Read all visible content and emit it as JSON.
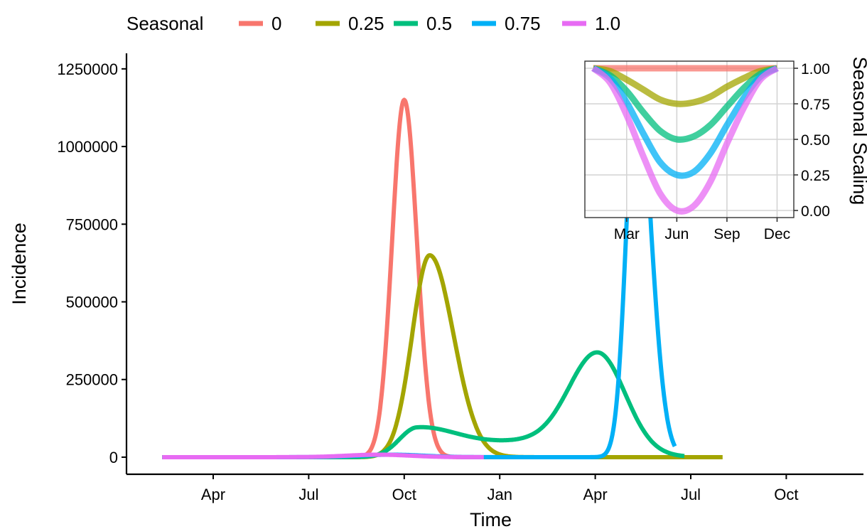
{
  "chart_data": [
    {
      "type": "line",
      "xlabel": "Time",
      "ylabel": "Incidence",
      "x_tick_labels": [
        "Apr",
        "Jul",
        "Oct",
        "Jan",
        "Apr",
        "Jul",
        "Oct"
      ],
      "y_tick_labels": [
        "0",
        "250000",
        "500000",
        "750000",
        "1000000",
        "1250000"
      ],
      "y_ticks": [
        0,
        250000,
        500000,
        750000,
        1000000,
        1250000
      ],
      "x_range_months": [
        0,
        16
      ],
      "ylim": [
        -55000,
        1300000
      ],
      "grid": false,
      "legend": {
        "title": "Seasonal",
        "placement": "top",
        "entries": [
          "0",
          "0.25",
          "0.5",
          "0.75",
          "1.0"
        ]
      },
      "series": [
        {
          "name": "0",
          "color": "#F8766D",
          "end": 10.0,
          "peaks": [
            {
              "center": 6.0,
              "amplitude": 1150000,
              "sigma_left": 0.38,
              "sigma_right": 0.4
            }
          ]
        },
        {
          "name": "0.25",
          "color": "#A3A500",
          "end": 16.0,
          "peaks": [
            {
              "center": 6.8,
              "amplitude": 650000,
              "sigma_left": 0.55,
              "sigma_right": 0.75
            }
          ]
        },
        {
          "name": "0.5",
          "color": "#00BF7D",
          "end": 14.8,
          "peaks": [
            {
              "center": 6.4,
              "amplitude": 90000,
              "sigma_left": 0.55,
              "sigma_right": 1.3
            },
            {
              "center": 10.1,
              "amplitude": 50000,
              "sigma_left": 1.8,
              "sigma_right": 1.8
            },
            {
              "center": 12.1,
              "amplitude": 310000,
              "sigma_left": 0.9,
              "sigma_right": 0.85
            }
          ]
        },
        {
          "name": "0.75",
          "color": "#00B0F6",
          "end": 14.5,
          "peaks": [
            {
              "center": 5.6,
              "amplitude": 8000,
              "sigma_left": 1.0,
              "sigma_right": 1.0
            },
            {
              "center": 13.3,
              "amplitude": 1225000,
              "sigma_left": 0.32,
              "sigma_right": 0.45
            }
          ]
        },
        {
          "name": "1.0",
          "color": "#E76BF3",
          "end": 8.5,
          "peaks": [
            {
              "center": 5.2,
              "amplitude": 8000,
              "sigma_left": 1.0,
              "sigma_right": 1.0
            }
          ]
        }
      ]
    },
    {
      "type": "line",
      "title": "",
      "ylabel": "Seasonal Scaling",
      "x_tick_labels": [
        "Mar",
        "Jun",
        "Sep",
        "Dec"
      ],
      "x_ticks": [
        3,
        6,
        9,
        12
      ],
      "y_tick_labels": [
        "0.00",
        "0.25",
        "0.50",
        "0.75",
        "1.00"
      ],
      "y_ticks": [
        0,
        0.25,
        0.5,
        0.75,
        1.0
      ],
      "xlim": [
        0.5,
        13.0
      ],
      "ylim": [
        -0.05,
        1.05
      ],
      "grid": true,
      "x": [
        1,
        2,
        3,
        4,
        5,
        6,
        7,
        8,
        9,
        10,
        11,
        12
      ],
      "series": [
        {
          "name": "0",
          "color": "#F8766D",
          "values": [
            1.0,
            1.0,
            1.0,
            1.0,
            1.0,
            1.0,
            1.0,
            1.0,
            1.0,
            1.0,
            1.0,
            1.0
          ]
        },
        {
          "name": "0.25",
          "color": "#A3A500",
          "values": [
            1.0,
            0.98,
            0.92,
            0.85,
            0.78,
            0.75,
            0.76,
            0.8,
            0.87,
            0.93,
            0.98,
            1.0
          ]
        },
        {
          "name": "0.5",
          "color": "#00BF7D",
          "values": [
            1.0,
            0.95,
            0.84,
            0.69,
            0.56,
            0.5,
            0.52,
            0.6,
            0.73,
            0.86,
            0.96,
            1.0
          ]
        },
        {
          "name": "0.75",
          "color": "#00B0F6",
          "values": [
            1.0,
            0.93,
            0.76,
            0.54,
            0.34,
            0.25,
            0.27,
            0.4,
            0.6,
            0.79,
            0.94,
            1.0
          ]
        },
        {
          "name": "1.0",
          "color": "#E76BF3",
          "values": [
            1.0,
            0.9,
            0.67,
            0.38,
            0.12,
            0.0,
            0.03,
            0.2,
            0.47,
            0.72,
            0.92,
            1.0
          ]
        }
      ]
    }
  ]
}
